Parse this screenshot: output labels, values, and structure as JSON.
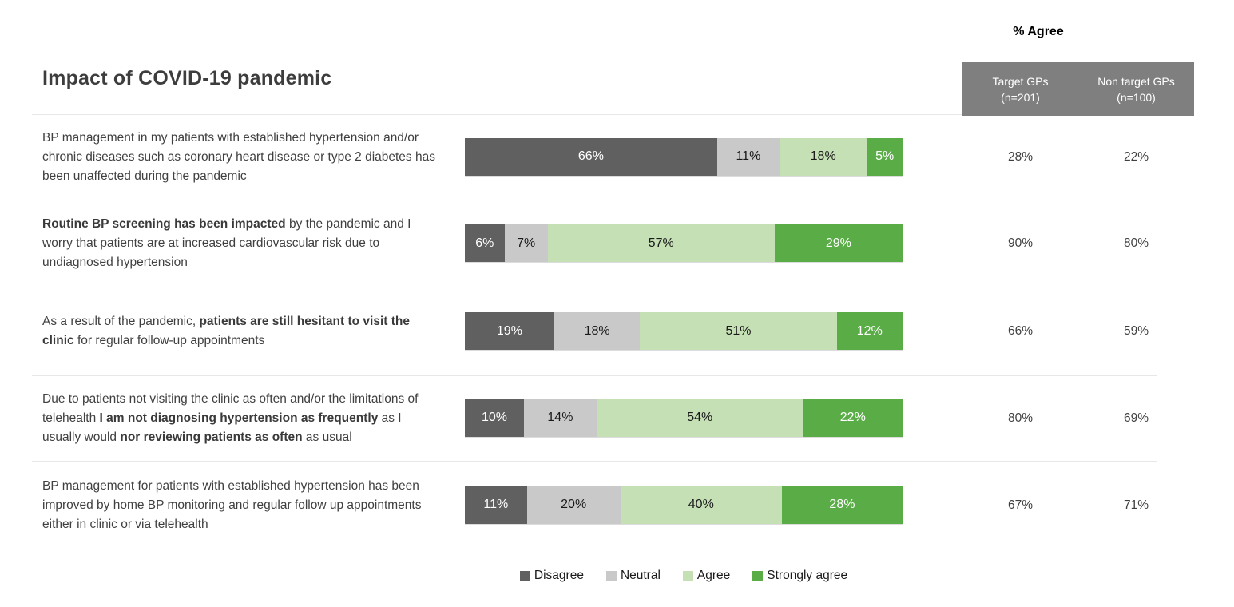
{
  "title": "Impact of COVID-19 pandemic",
  "agree_header": {
    "title": "% Agree",
    "background": "#7f7f7f",
    "columns": [
      {
        "label": "Target GPs",
        "n": "(n=201)"
      },
      {
        "label": "Non target GPs",
        "n": "(n=100)"
      }
    ]
  },
  "legend": [
    {
      "key": "disagree",
      "label": "Disagree",
      "color": "#606060",
      "label_color": "#ffffff"
    },
    {
      "key": "neutral",
      "label": "Neutral",
      "color": "#c9c9c9",
      "label_color": "#1a1a1a"
    },
    {
      "key": "agree",
      "label": "Agree",
      "color": "#c5e0b4",
      "label_color": "#1a1a1a"
    },
    {
      "key": "strongly-agree",
      "label": "Strongly agree",
      "color": "#5aad46",
      "label_color": "#ffffff"
    }
  ],
  "rows": [
    {
      "statement": [
        {
          "text": "BP management in my patients with established hypertension and/or chronic diseases such as coronary heart disease or type 2 diabetes has been unaffected during the pandemic",
          "bold": false
        }
      ],
      "segments": [
        {
          "value": 66,
          "label": "66%"
        },
        {
          "value": 11,
          "label": "11%"
        },
        {
          "value": 18,
          "label": "18%"
        },
        {
          "value": 5,
          "label": "5%"
        }
      ],
      "target_agree": "28%",
      "non_target_agree": "22%"
    },
    {
      "statement": [
        {
          "text": "Routine BP screening has been impacted",
          "bold": true
        },
        {
          "text": " by the pandemic and I worry that patients are at increased cardiovascular risk due to undiagnosed hypertension",
          "bold": false
        }
      ],
      "segments": [
        {
          "value": 6,
          "label": "6%"
        },
        {
          "value": 7,
          "label": "7%"
        },
        {
          "value": 57,
          "label": "57%"
        },
        {
          "value": 29,
          "label": "29%"
        }
      ],
      "target_agree": "90%",
      "non_target_agree": "80%"
    },
    {
      "statement": [
        {
          "text": "As a result of the pandemic, ",
          "bold": false
        },
        {
          "text": "patients are still hesitant to visit the clinic",
          "bold": true
        },
        {
          "text": " for regular follow-up appointments",
          "bold": false
        }
      ],
      "segments": [
        {
          "value": 19,
          "label": "19%"
        },
        {
          "value": 18,
          "label": "18%"
        },
        {
          "value": 51,
          "label": "51%"
        },
        {
          "value": 12,
          "label": "12%"
        }
      ],
      "target_agree": "66%",
      "non_target_agree": "59%"
    },
    {
      "statement": [
        {
          "text": "Due to patients not visiting the clinic as often and/or the limitations of telehealth ",
          "bold": false
        },
        {
          "text": "I am not diagnosing hypertension as frequently",
          "bold": true
        },
        {
          "text": " as I usually would ",
          "bold": false
        },
        {
          "text": "nor reviewing patients as often",
          "bold": true
        },
        {
          "text": " as usual",
          "bold": false
        }
      ],
      "segments": [
        {
          "value": 10,
          "label": "10%"
        },
        {
          "value": 14,
          "label": "14%"
        },
        {
          "value": 54,
          "label": "54%"
        },
        {
          "value": 22,
          "label": "22%"
        }
      ],
      "target_agree": "80%",
      "non_target_agree": "69%"
    },
    {
      "statement": [
        {
          "text": "BP management for patients with established hypertension has been improved by home BP monitoring and regular follow up appointments either in clinic or via telehealth",
          "bold": false
        }
      ],
      "segments": [
        {
          "value": 11,
          "label": "11%"
        },
        {
          "value": 20,
          "label": "20%"
        },
        {
          "value": 40,
          "label": "40%"
        },
        {
          "value": 28,
          "label": "28%"
        }
      ],
      "target_agree": "67%",
      "non_target_agree": "71%"
    }
  ],
  "chart_data": {
    "type": "bar",
    "orientation": "horizontal-stacked",
    "title": "Impact of COVID-19 pandemic",
    "unit": "%",
    "xlim": [
      0,
      100
    ],
    "grid": false,
    "legend_position": "bottom",
    "categories": [
      "BP management in my patients with established hypertension and/or chronic diseases such as coronary heart disease or type 2 diabetes has been unaffected during the pandemic",
      "Routine BP screening has been impacted by the pandemic and I worry that patients are at increased cardiovascular risk due to undiagnosed hypertension",
      "As a result of the pandemic, patients are still hesitant to visit the clinic for regular follow-up appointments",
      "Due to patients not visiting the clinic as often and/or the limitations of telehealth I am not diagnosing hypertension as frequently as I usually would nor reviewing patients as often as usual",
      "BP management for patients with established hypertension has been improved by home BP monitoring and regular follow up appointments either in clinic or via telehealth"
    ],
    "series": [
      {
        "name": "Disagree",
        "color": "#606060",
        "values": [
          66,
          6,
          19,
          10,
          11
        ]
      },
      {
        "name": "Neutral",
        "color": "#c9c9c9",
        "values": [
          11,
          7,
          18,
          14,
          20
        ]
      },
      {
        "name": "Agree",
        "color": "#c5e0b4",
        "values": [
          18,
          57,
          51,
          54,
          40
        ]
      },
      {
        "name": "Strongly agree",
        "color": "#5aad46",
        "values": [
          5,
          29,
          12,
          22,
          28
        ]
      }
    ],
    "agree_table": {
      "title": "% Agree",
      "columns": [
        "Target GPs (n=201)",
        "Non target GPs (n=100)"
      ],
      "rows": [
        [
          28,
          22
        ],
        [
          90,
          80
        ],
        [
          66,
          59
        ],
        [
          80,
          69
        ],
        [
          67,
          71
        ]
      ]
    }
  }
}
